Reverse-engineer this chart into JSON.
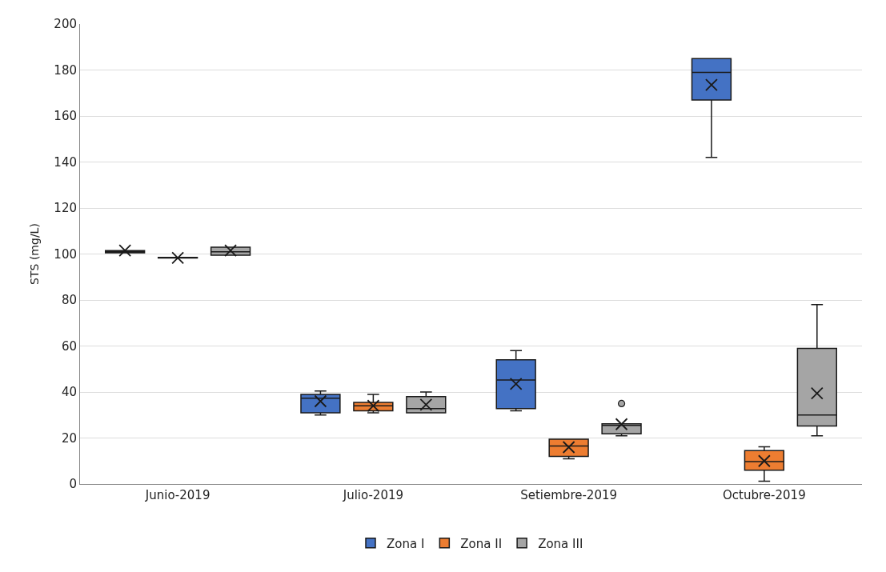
{
  "chart_data": {
    "type": "box",
    "ylabel": "STS (mg/L)",
    "categories": [
      "Junio-2019",
      "Julio-2019",
      "Setiembre-2019",
      "Octubre-2019"
    ],
    "ylim": [
      0,
      200
    ],
    "yticks": [
      0,
      20,
      40,
      60,
      80,
      100,
      120,
      140,
      160,
      180,
      200
    ],
    "grid": "y",
    "legend": "bottom",
    "series": [
      {
        "name": "Zona I",
        "color": "#4472c4",
        "boxes": [
          {
            "low": 100.5,
            "q1": 100.5,
            "median": 101,
            "q3": 101.5,
            "high": 101.5,
            "mean": 101.5
          },
          {
            "low": 30,
            "q1": 31,
            "median": 37.3,
            "q3": 39,
            "high": 40.4,
            "mean": 36
          },
          {
            "low": 31.8,
            "q1": 32.8,
            "median": 45.2,
            "q3": 54,
            "high": 58,
            "mean": 43.5
          },
          {
            "low": 142,
            "q1": 167,
            "median": 179,
            "q3": 185,
            "high": 185,
            "mean": 173.5
          }
        ]
      },
      {
        "name": "Zona II",
        "color": "#ed7d31",
        "boxes": [
          {
            "low": 98.3,
            "q1": 98.3,
            "median": 98.3,
            "q3": 98.5,
            "high": 98.5,
            "mean": 98.3
          },
          {
            "low": 31,
            "q1": 31.8,
            "median": 34,
            "q3": 35.5,
            "high": 39,
            "mean": 34
          },
          {
            "low": 11,
            "q1": 12,
            "median": 16.5,
            "q3": 19.5,
            "high": 19.5,
            "mean": 16
          },
          {
            "low": 1.2,
            "q1": 6,
            "median": 9.7,
            "q3": 14.5,
            "high": 16.2,
            "mean": 10
          }
        ]
      },
      {
        "name": "Zona III",
        "color": "#a5a5a5",
        "boxes": [
          {
            "low": 99.5,
            "q1": 99.5,
            "median": 101,
            "q3": 103,
            "high": 103,
            "mean": 101.5
          },
          {
            "low": 31,
            "q1": 31,
            "median": 32.8,
            "q3": 38,
            "high": 40,
            "mean": 34.5
          },
          {
            "low": 21,
            "q1": 21.8,
            "median": 25.5,
            "q3": 26.2,
            "high": 26.2,
            "mean": 26,
            "outliers": [
              35
            ]
          },
          {
            "low": 21,
            "q1": 25.2,
            "median": 30,
            "q3": 59,
            "high": 78,
            "mean": 39.4
          }
        ]
      }
    ]
  }
}
